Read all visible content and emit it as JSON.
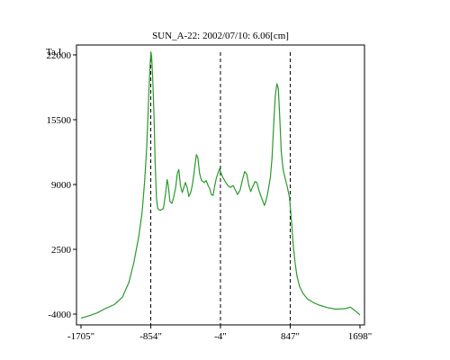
{
  "chart_data": {
    "type": "line",
    "title": "SUN_A-22: 2002/07/10: 6.06[cm]",
    "ylabel": "Ta,I",
    "xlabel": "",
    "x_ticks": [
      {
        "value": -1705,
        "label": "-1705\""
      },
      {
        "value": -854,
        "label": "-854\""
      },
      {
        "value": -4,
        "label": "-4\""
      },
      {
        "value": 847,
        "label": "847\""
      },
      {
        "value": 1698,
        "label": "1698\""
      }
    ],
    "y_ticks": [
      {
        "value": -4000,
        "label": "-4000"
      },
      {
        "value": 2500,
        "label": "2500"
      },
      {
        "value": 9000,
        "label": "9000"
      },
      {
        "value": 15500,
        "label": "15500"
      },
      {
        "value": 22000,
        "label": "22000"
      }
    ],
    "xlim": [
      -1705,
      1698
    ],
    "ylim": [
      -4000,
      22000
    ],
    "grid": false,
    "vertical_markers": [
      -854,
      -4,
      847
    ],
    "colors": {
      "series": "#2a9a2a",
      "axes": "#000000",
      "markers": "#000000"
    },
    "series": [
      {
        "points": [
          [
            -1705,
            -4400
          ],
          [
            -1600,
            -4150
          ],
          [
            -1500,
            -3850
          ],
          [
            -1400,
            -3400
          ],
          [
            -1300,
            -3050
          ],
          [
            -1200,
            -2300
          ],
          [
            -1120,
            -800
          ],
          [
            -1060,
            1200
          ],
          [
            -1000,
            3800
          ],
          [
            -960,
            6200
          ],
          [
            -930,
            9200
          ],
          [
            -905,
            12500
          ],
          [
            -885,
            16500
          ],
          [
            -870,
            19800
          ],
          [
            -858,
            21600
          ],
          [
            -852,
            22300
          ],
          [
            -843,
            21800
          ],
          [
            -830,
            19600
          ],
          [
            -815,
            16000
          ],
          [
            -800,
            11200
          ],
          [
            -785,
            7700
          ],
          [
            -770,
            6600
          ],
          [
            -740,
            6400
          ],
          [
            -700,
            6600
          ],
          [
            -672,
            8200
          ],
          [
            -655,
            9500
          ],
          [
            -640,
            8900
          ],
          [
            -620,
            7300
          ],
          [
            -595,
            7100
          ],
          [
            -575,
            7700
          ],
          [
            -550,
            8700
          ],
          [
            -530,
            10100
          ],
          [
            -512,
            10500
          ],
          [
            -492,
            8900
          ],
          [
            -470,
            8200
          ],
          [
            -447,
            8800
          ],
          [
            -432,
            9200
          ],
          [
            -410,
            8700
          ],
          [
            -390,
            7800
          ],
          [
            -367,
            8200
          ],
          [
            -345,
            9000
          ],
          [
            -320,
            10600
          ],
          [
            -298,
            12000
          ],
          [
            -280,
            11700
          ],
          [
            -258,
            10100
          ],
          [
            -235,
            9400
          ],
          [
            -215,
            9300
          ],
          [
            -198,
            9200
          ],
          [
            -178,
            9400
          ],
          [
            -155,
            8900
          ],
          [
            -135,
            8600
          ],
          [
            -115,
            8000
          ],
          [
            -95,
            7900
          ],
          [
            -75,
            8800
          ],
          [
            -55,
            9600
          ],
          [
            -35,
            10100
          ],
          [
            -15,
            10600
          ],
          [
            5,
            10100
          ],
          [
            25,
            9700
          ],
          [
            55,
            9300
          ],
          [
            85,
            8900
          ],
          [
            115,
            8700
          ],
          [
            150,
            8900
          ],
          [
            180,
            8400
          ],
          [
            205,
            8000
          ],
          [
            235,
            8400
          ],
          [
            262,
            9400
          ],
          [
            292,
            10300
          ],
          [
            318,
            10000
          ],
          [
            342,
            8900
          ],
          [
            365,
            8300
          ],
          [
            395,
            8900
          ],
          [
            418,
            9300
          ],
          [
            440,
            9200
          ],
          [
            470,
            8300
          ],
          [
            500,
            7600
          ],
          [
            532,
            6900
          ],
          [
            550,
            7300
          ],
          [
            572,
            8100
          ],
          [
            605,
            9700
          ],
          [
            625,
            11700
          ],
          [
            645,
            15000
          ],
          [
            665,
            17900
          ],
          [
            685,
            19100
          ],
          [
            702,
            18600
          ],
          [
            718,
            16000
          ],
          [
            738,
            12300
          ],
          [
            760,
            10500
          ],
          [
            782,
            9700
          ],
          [
            810,
            8800
          ],
          [
            838,
            7700
          ],
          [
            860,
            5500
          ],
          [
            882,
            3100
          ],
          [
            905,
            1200
          ],
          [
            930,
            -200
          ],
          [
            960,
            -1200
          ],
          [
            1000,
            -1900
          ],
          [
            1060,
            -2500
          ],
          [
            1130,
            -2850
          ],
          [
            1200,
            -3100
          ],
          [
            1300,
            -3350
          ],
          [
            1400,
            -3500
          ],
          [
            1520,
            -3450
          ],
          [
            1580,
            -3300
          ],
          [
            1620,
            -3550
          ],
          [
            1660,
            -3800
          ],
          [
            1698,
            -4100
          ]
        ]
      }
    ]
  }
}
